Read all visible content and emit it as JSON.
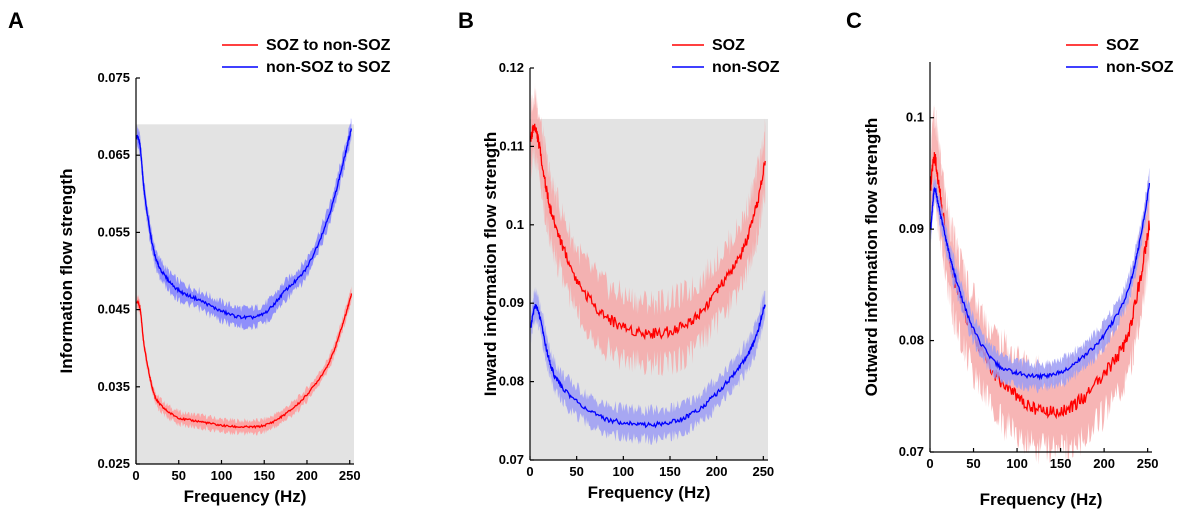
{
  "chart_data": [
    {
      "panel": "A",
      "type": "line",
      "xlabel": "Frequency (Hz)",
      "ylabel": "Information flow strength",
      "xlim": [
        0,
        255
      ],
      "ylim": [
        0.025,
        0.075
      ],
      "xticks": [
        0,
        50,
        100,
        150,
        200,
        250
      ],
      "yticks": [
        0.025,
        0.035,
        0.045,
        0.055,
        0.065,
        0.075
      ],
      "ytick_labels": [
        "0.025",
        "0.035",
        "0.045",
        "0.055",
        "0.065",
        "0.075"
      ],
      "shaded_region": {
        "x": [
          0,
          255
        ],
        "y": [
          0.025,
          0.069
        ],
        "color": "#e3e3e3"
      },
      "legend_position": "top-right",
      "series": [
        {
          "name": "SOZ to non-SOZ",
          "color": "#ff0000",
          "band_color": "#ff9a9a",
          "x": [
            1,
            5,
            10,
            20,
            30,
            50,
            75,
            100,
            125,
            150,
            175,
            200,
            225,
            240,
            252
          ],
          "values": [
            0.046,
            0.045,
            0.04,
            0.0345,
            0.0325,
            0.031,
            0.0305,
            0.03,
            0.0298,
            0.03,
            0.0315,
            0.034,
            0.038,
            0.0425,
            0.047
          ],
          "band": 0.0008
        },
        {
          "name": "non-SOZ to SOZ",
          "color": "#0000ff",
          "band_color": "#8080ff",
          "x": [
            1,
            5,
            10,
            20,
            30,
            50,
            75,
            100,
            125,
            150,
            175,
            200,
            225,
            240,
            252
          ],
          "values": [
            0.0675,
            0.066,
            0.06,
            0.053,
            0.05,
            0.0475,
            0.0462,
            0.0448,
            0.044,
            0.0445,
            0.0475,
            0.0505,
            0.057,
            0.063,
            0.0685
          ],
          "band": 0.0012
        }
      ]
    },
    {
      "panel": "B",
      "type": "line",
      "xlabel": "Frequency (Hz)",
      "ylabel": "Inward information flow strength",
      "xlim": [
        0,
        255
      ],
      "ylim": [
        0.07,
        0.12
      ],
      "xticks": [
        0,
        50,
        100,
        150,
        200,
        250
      ],
      "yticks": [
        0.07,
        0.08,
        0.09,
        0.1,
        0.11,
        0.12
      ],
      "ytick_labels": [
        "0.07",
        "0.08",
        "0.09",
        "0.1",
        "0.11",
        "0.12"
      ],
      "shaded_region": {
        "x": [
          0,
          255
        ],
        "y": [
          0.07,
          0.1135
        ],
        "color": "#e3e3e3"
      },
      "legend_position": "top-right",
      "series": [
        {
          "name": "SOZ",
          "color": "#ff0000",
          "band_color": "#f6a8a8",
          "x": [
            1,
            5,
            10,
            20,
            30,
            50,
            75,
            100,
            125,
            150,
            175,
            200,
            225,
            240,
            252
          ],
          "values": [
            0.111,
            0.1125,
            0.11,
            0.103,
            0.099,
            0.093,
            0.089,
            0.087,
            0.0862,
            0.0865,
            0.088,
            0.0915,
            0.096,
            0.101,
            0.108
          ],
          "band": 0.004
        },
        {
          "name": "non-SOZ",
          "color": "#0000ff",
          "band_color": "#9c9cf4",
          "x": [
            1,
            5,
            10,
            20,
            30,
            50,
            75,
            100,
            125,
            150,
            175,
            200,
            225,
            240,
            252
          ],
          "values": [
            0.087,
            0.0895,
            0.0885,
            0.083,
            0.08,
            0.0775,
            0.0755,
            0.0748,
            0.0745,
            0.0748,
            0.076,
            0.0785,
            0.082,
            0.085,
            0.09
          ],
          "band": 0.0018
        }
      ]
    },
    {
      "panel": "C",
      "type": "line",
      "xlabel": "Frequency (Hz)",
      "ylabel": "Outward information flow strength",
      "xlim": [
        0,
        255
      ],
      "ylim": [
        0.07,
        0.105
      ],
      "xticks": [
        0,
        50,
        100,
        150,
        200,
        250
      ],
      "yticks": [
        0.07,
        0.08,
        0.09,
        0.1
      ],
      "ytick_labels": [
        "0.07",
        "0.08",
        "0.09",
        "0.1"
      ],
      "legend_position": "top-right",
      "series": [
        {
          "name": "SOZ",
          "color": "#ff0000",
          "band_color": "#f6a8a8",
          "x": [
            1,
            5,
            10,
            20,
            30,
            50,
            75,
            100,
            125,
            150,
            175,
            200,
            225,
            240,
            252
          ],
          "values": [
            0.094,
            0.0965,
            0.094,
            0.0885,
            0.085,
            0.0805,
            0.077,
            0.075,
            0.0738,
            0.0737,
            0.0748,
            0.077,
            0.08,
            0.085,
            0.0905
          ],
          "band": 0.0035
        },
        {
          "name": "non-SOZ",
          "color": "#0000ff",
          "band_color": "#9c9cf4",
          "x": [
            1,
            5,
            10,
            20,
            30,
            50,
            75,
            100,
            125,
            150,
            175,
            200,
            225,
            240,
            252
          ],
          "values": [
            0.09,
            0.0935,
            0.092,
            0.0885,
            0.0855,
            0.081,
            0.078,
            0.0771,
            0.0768,
            0.0772,
            0.0785,
            0.0805,
            0.084,
            0.0885,
            0.094
          ],
          "band": 0.0011
        }
      ]
    }
  ]
}
